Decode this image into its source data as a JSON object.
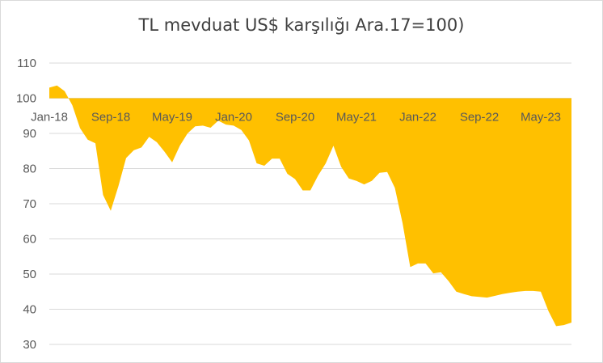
{
  "chart_data": {
    "type": "area",
    "title": "TL mevduat US$ karşılığı Ara.17=100)",
    "xlabel": "",
    "ylabel": "",
    "baseline": 100,
    "ylim": [
      30,
      110
    ],
    "yticks": [
      30,
      40,
      50,
      60,
      70,
      80,
      90,
      100,
      110
    ],
    "xtick_labels": [
      "Jan-18",
      "Sep-18",
      "May-19",
      "Jan-20",
      "Sep-20",
      "May-21",
      "Jan-22",
      "Sep-22",
      "May-23"
    ],
    "grid": true,
    "legend": "none",
    "fill_color": "#FFC000",
    "x": [
      "Jan-18",
      "Feb-18",
      "Mar-18",
      "Apr-18",
      "May-18",
      "Jun-18",
      "Jul-18",
      "Aug-18",
      "Sep-18",
      "Oct-18",
      "Nov-18",
      "Dec-18",
      "Jan-19",
      "Feb-19",
      "Mar-19",
      "Apr-19",
      "May-19",
      "Jun-19",
      "Jul-19",
      "Aug-19",
      "Sep-19",
      "Oct-19",
      "Nov-19",
      "Dec-19",
      "Jan-20",
      "Feb-20",
      "Mar-20",
      "Apr-20",
      "May-20",
      "Jun-20",
      "Jul-20",
      "Aug-20",
      "Sep-20",
      "Oct-20",
      "Nov-20",
      "Dec-20",
      "Jan-21",
      "Feb-21",
      "Mar-21",
      "Apr-21",
      "May-21",
      "Jun-21",
      "Jul-21",
      "Aug-21",
      "Sep-21",
      "Oct-21",
      "Nov-21",
      "Dec-21",
      "Jan-22",
      "Feb-22",
      "Mar-22",
      "Apr-22",
      "May-22",
      "Jun-22",
      "Jul-22",
      "Aug-22",
      "Sep-22",
      "Oct-22",
      "Nov-22",
      "Dec-22",
      "Jan-23",
      "Feb-23",
      "Mar-23",
      "Apr-23",
      "May-23",
      "Jun-23",
      "Jul-23",
      "Aug-23",
      "Sep-23"
    ],
    "values": [
      103,
      103.6,
      102,
      98,
      91.5,
      88.2,
      87.2,
      72.5,
      68,
      75,
      83,
      85.2,
      86,
      89,
      87.5,
      84.8,
      81.8,
      86.5,
      90,
      92,
      92.2,
      91.6,
      93.6,
      92.5,
      92.2,
      91,
      88,
      81.5,
      80.8,
      82.8,
      82.8,
      78.5,
      77,
      73.8,
      73.8,
      78,
      81.5,
      86.5,
      80.5,
      77.2,
      76.5,
      75.5,
      76.5,
      78.8,
      79,
      74.5,
      64.5,
      52,
      53,
      53,
      50.2,
      50.5,
      48,
      45,
      44.3,
      43.7,
      43.5,
      43.3,
      43.8,
      44.3,
      44.7,
      45,
      45.2,
      45.2,
      45,
      39.5,
      35.2,
      35.5,
      36.2
    ]
  }
}
